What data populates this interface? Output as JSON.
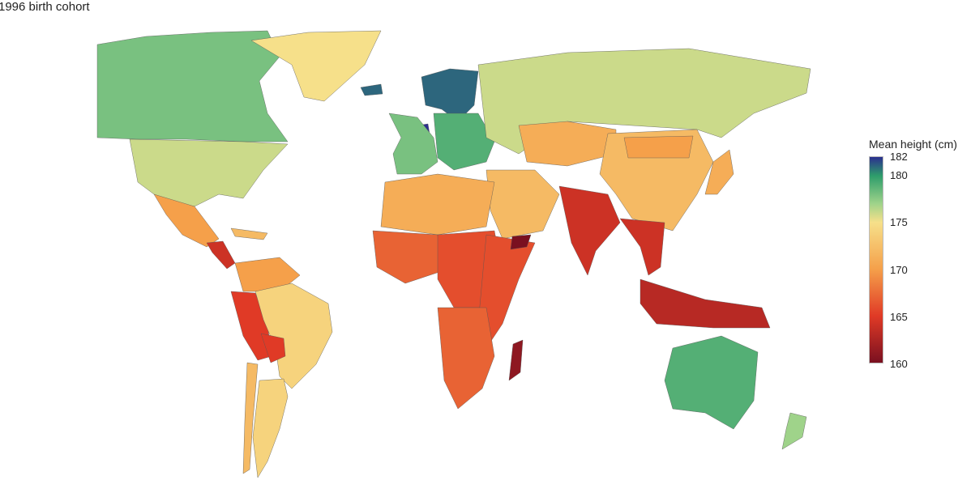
{
  "title": "1996 birth cohort",
  "legend": {
    "title": "Mean height (cm)",
    "ticks": [
      "182",
      "180",
      "175",
      "170",
      "165",
      "160"
    ],
    "tick_values": [
      182,
      180,
      175,
      170,
      165,
      160
    ],
    "range": [
      160,
      182
    ],
    "gradient": [
      {
        "value": 182,
        "color": "#2b2f8f"
      },
      {
        "value": 180,
        "color": "#2e9d6b"
      },
      {
        "value": 177,
        "color": "#9fd38a"
      },
      {
        "value": 175,
        "color": "#f6e08a"
      },
      {
        "value": 170,
        "color": "#f5a04a"
      },
      {
        "value": 165,
        "color": "#e03a26"
      },
      {
        "value": 160,
        "color": "#7a1020"
      }
    ]
  },
  "no_data_color": "#aaaaaa",
  "regions": [
    {
      "name": "Canada",
      "height": 178
    },
    {
      "name": "USA",
      "height": 176
    },
    {
      "name": "Mexico",
      "height": 170
    },
    {
      "name": "Central America",
      "height": 164
    },
    {
      "name": "Caribbean",
      "height": 172
    },
    {
      "name": "Colombia/Venezuela",
      "height": 170
    },
    {
      "name": "Peru/Ecuador",
      "height": 165
    },
    {
      "name": "Brazil",
      "height": 174
    },
    {
      "name": "Bolivia",
      "height": 165
    },
    {
      "name": "Argentina",
      "height": 174
    },
    {
      "name": "Chile",
      "height": 172
    },
    {
      "name": "Greenland",
      "height": 175
    },
    {
      "name": "Iceland",
      "height": 181
    },
    {
      "name": "Scandinavia",
      "height": 181
    },
    {
      "name": "Netherlands",
      "height": 182
    },
    {
      "name": "Western Europe",
      "height": 178
    },
    {
      "name": "Eastern Europe",
      "height": 179
    },
    {
      "name": "Russia",
      "height": 176
    },
    {
      "name": "Central Asia",
      "height": 171
    },
    {
      "name": "Middle East",
      "height": 172
    },
    {
      "name": "North Africa",
      "height": 171
    },
    {
      "name": "West Africa",
      "height": 167
    },
    {
      "name": "Central Africa",
      "height": 166
    },
    {
      "name": "East Africa",
      "height": 166
    },
    {
      "name": "Southern Africa",
      "height": 167
    },
    {
      "name": "Madagascar",
      "height": 161
    },
    {
      "name": "Yemen",
      "height": 160
    },
    {
      "name": "India",
      "height": 164
    },
    {
      "name": "China",
      "height": 172
    },
    {
      "name": "Mongolia",
      "height": 170
    },
    {
      "name": "Japan",
      "height": 171
    },
    {
      "name": "Southeast Asia",
      "height": 164
    },
    {
      "name": "Indonesia",
      "height": 163
    },
    {
      "name": "Australia",
      "height": 179
    },
    {
      "name": "New Zealand",
      "height": 177
    }
  ]
}
